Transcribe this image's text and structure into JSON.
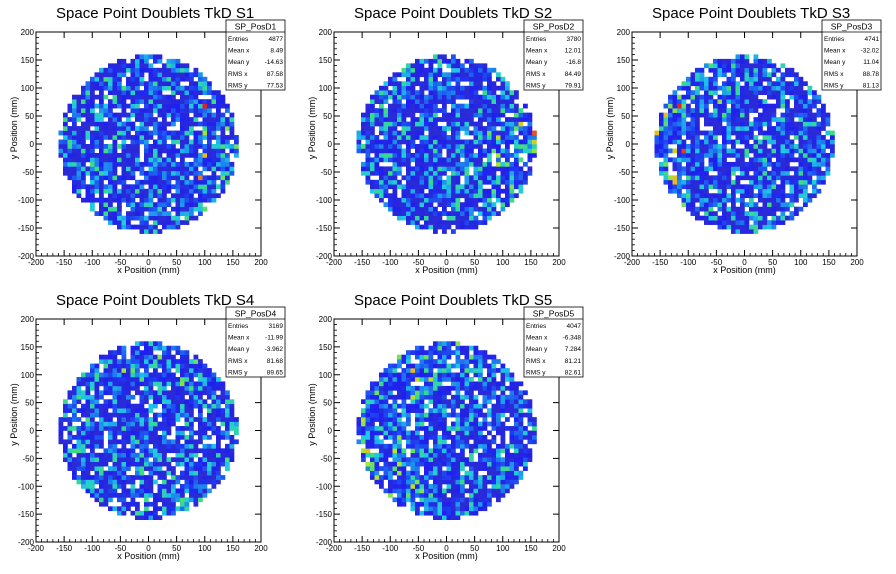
{
  "colors": {
    "background": "#ffffff",
    "palette_low": "#2b2bd6",
    "palette_mid": "#1ec8e6",
    "palette_high": "#e61e1e"
  },
  "common": {
    "xlabel": "x Position (mm)",
    "ylabel": "y Position (mm)",
    "stat_labels": [
      "Entries",
      "Mean x",
      "Mean y",
      "RMS x",
      "RMS y"
    ]
  },
  "chart_data": [
    {
      "type": "heatmap",
      "title": "Space Point Doublets TkD S1",
      "xlabel": "x Position (mm)",
      "ylabel": "y Position (mm)",
      "xlim": [
        -200,
        200
      ],
      "ylim": [
        -200,
        200
      ],
      "xticks": [
        -200,
        -150,
        -100,
        -50,
        0,
        50,
        100,
        150,
        200
      ],
      "yticks": [
        -200,
        -150,
        -100,
        -50,
        0,
        50,
        100,
        150,
        200
      ],
      "hist_name": "SP_PosD1",
      "stats": {
        "Entries": "4877",
        "Mean x": "8.49",
        "Mean y": "-14.63",
        "RMS x": "87.58",
        "RMS y": "77.53"
      },
      "disk_radius": 160,
      "feature": "vertical hot stripe near x=95"
    },
    {
      "type": "heatmap",
      "title": "Space Point Doublets TkD S2",
      "xlabel": "x Position (mm)",
      "ylabel": "y Position (mm)",
      "xlim": [
        -200,
        200
      ],
      "ylim": [
        -200,
        200
      ],
      "xticks": [
        -200,
        -150,
        -100,
        -50,
        0,
        50,
        100,
        150,
        200
      ],
      "yticks": [
        -200,
        -150,
        -100,
        -50,
        0,
        50,
        100,
        150,
        200
      ],
      "hist_name": "SP_PosD2",
      "stats": {
        "Entries": "3780",
        "Mean x": "12.01",
        "Mean y": "-16.8",
        "RMS x": "84.49",
        "RMS y": "79.91"
      },
      "disk_radius": 160,
      "feature": "hotter lower-right region"
    },
    {
      "type": "heatmap",
      "title": "Space Point Doublets TkD S3",
      "xlabel": "x Position (mm)",
      "ylabel": "y Position (mm)",
      "xlim": [
        -200,
        200
      ],
      "ylim": [
        -200,
        200
      ],
      "xticks": [
        -200,
        -150,
        -100,
        -50,
        0,
        50,
        100,
        150,
        200
      ],
      "yticks": [
        -200,
        -150,
        -100,
        -50,
        0,
        50,
        100,
        150,
        200
      ],
      "hist_name": "SP_PosD3",
      "stats": {
        "Entries": "4741",
        "Mean x": "-32.02",
        "Mean y": "11.04",
        "RMS x": "88.78",
        "RMS y": "81.13"
      },
      "disk_radius": 160,
      "feature": "hotter left edge"
    },
    {
      "type": "heatmap",
      "title": "Space Point Doublets TkD S4",
      "xlabel": "x Position (mm)",
      "ylabel": "y Position (mm)",
      "xlim": [
        -200,
        200
      ],
      "ylim": [
        -200,
        200
      ],
      "xticks": [
        -200,
        -150,
        -100,
        -50,
        0,
        50,
        100,
        150,
        200
      ],
      "yticks": [
        -200,
        -150,
        -100,
        -50,
        0,
        50,
        100,
        150,
        200
      ],
      "hist_name": "SP_PosD4",
      "stats": {
        "Entries": "3169",
        "Mean x": "-11.99",
        "Mean y": "-3.962",
        "RMS x": "81.68",
        "RMS y": "89.65"
      },
      "disk_radius": 160,
      "feature": "mostly low counts"
    },
    {
      "type": "heatmap",
      "title": "Space Point Doublets TkD S5",
      "xlabel": "x Position (mm)",
      "ylabel": "y Position (mm)",
      "xlim": [
        -200,
        200
      ],
      "ylim": [
        -200,
        200
      ],
      "xticks": [
        -200,
        -150,
        -100,
        -50,
        0,
        50,
        100,
        150,
        200
      ],
      "yticks": [
        -200,
        -150,
        -100,
        -50,
        0,
        50,
        100,
        150,
        200
      ],
      "hist_name": "SP_PosD5",
      "stats": {
        "Entries": "4047",
        "Mean x": "-6.348",
        "Mean y": "7.284",
        "RMS x": "81.21",
        "RMS y": "82.61"
      },
      "disk_radius": 160,
      "feature": "hotter left side"
    }
  ]
}
